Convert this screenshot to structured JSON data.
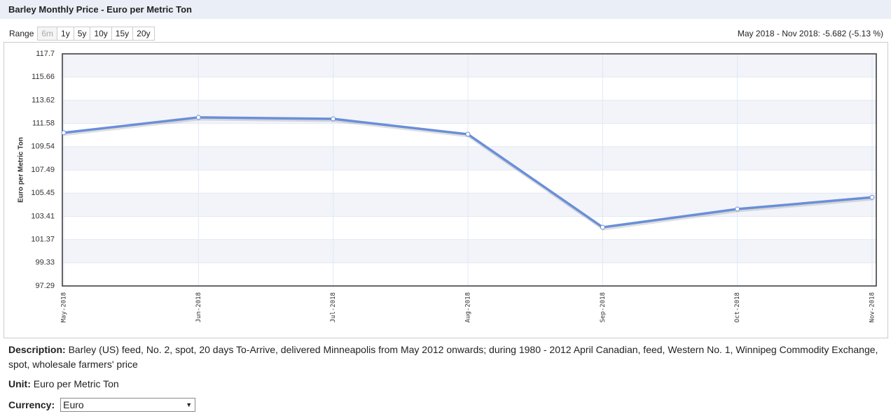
{
  "header": {
    "title": "Barley Monthly Price - Euro per Metric Ton"
  },
  "range": {
    "label": "Range",
    "options": [
      "6m",
      "1y",
      "5y",
      "10y",
      "15y",
      "20y"
    ]
  },
  "change": "May 2018 - Nov 2018: -5.682 (-5.13 %)",
  "chart_data": {
    "type": "line",
    "y_label": "Euro per Metric Ton",
    "categories": [
      "May-2018",
      "Jun-2018",
      "Jul-2018",
      "Aug-2018",
      "Sep-2018",
      "Oct-2018",
      "Nov-2018"
    ],
    "values": [
      110.76,
      112.11,
      111.98,
      110.63,
      102.45,
      104.05,
      105.08
    ],
    "color": "#6a8fd8",
    "ylim": [
      97.29,
      117.7
    ],
    "yticks": [
      97.29,
      99.33,
      101.37,
      103.41,
      105.45,
      107.49,
      109.54,
      111.58,
      113.62,
      115.66,
      117.7
    ],
    "grid": true
  },
  "description": {
    "label": "Description:",
    "text": "Barley (US) feed, No. 2, spot, 20 days To-Arrive, delivered Minneapolis from May 2012 onwards; during 1980 - 2012 April Canadian, feed, Western No. 1, Winnipeg Commodity Exchange, spot, wholesale farmers' price"
  },
  "unit": {
    "label": "Unit:",
    "text": "Euro per Metric Ton"
  },
  "currency": {
    "label": "Currency:",
    "value": "Euro"
  }
}
